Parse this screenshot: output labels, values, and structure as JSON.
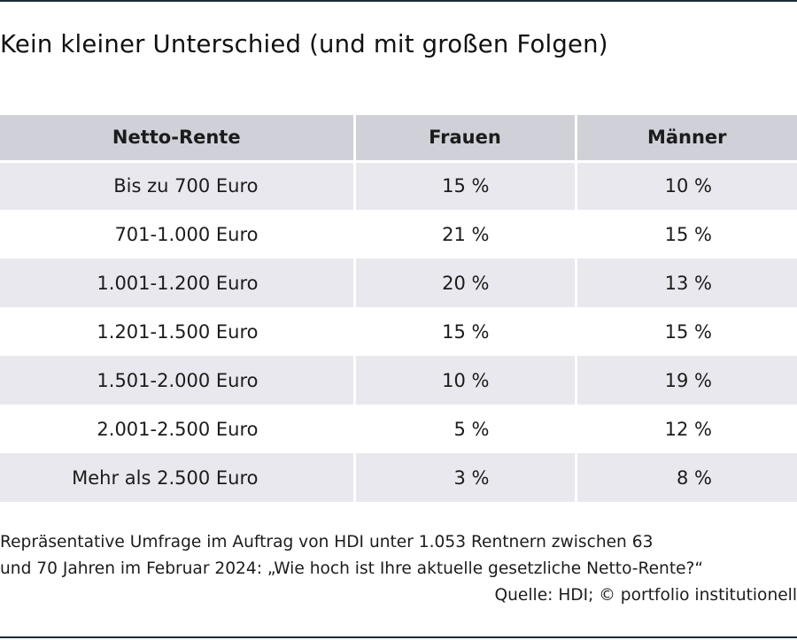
{
  "title": "Kein kleiner Unterschied (und mit großen Folgen)",
  "chart_data": {
    "type": "table",
    "columns": [
      "Netto-Rente",
      "Frauen",
      "Männer"
    ],
    "rows": [
      {
        "label": "Bis zu 700 Euro",
        "frauen": "15 %",
        "maenner": "10 %"
      },
      {
        "label": "701-1.000 Euro",
        "frauen": "21 %",
        "maenner": "15 %"
      },
      {
        "label": "1.001-1.200 Euro",
        "frauen": "20 %",
        "maenner": "13 %"
      },
      {
        "label": "1.201-1.500 Euro",
        "frauen": "15 %",
        "maenner": "15 %"
      },
      {
        "label": "1.501-2.000 Euro",
        "frauen": "10 %",
        "maenner": "19 %"
      },
      {
        "label": "2.001-2.500 Euro",
        "frauen": "5 %",
        "maenner": "12 %"
      },
      {
        "label": "Mehr als 2.500 Euro",
        "frauen": "3 %",
        "maenner": "8 %"
      }
    ],
    "values_frauen": [
      15,
      21,
      20,
      15,
      10,
      5,
      3
    ],
    "values_maenner": [
      10,
      15,
      13,
      15,
      19,
      12,
      8
    ],
    "unit": "%"
  },
  "footnote": {
    "line1": "Repräsentative Umfrage im Auftrag von HDI unter 1.053 Rentnern zwischen 63",
    "line2": "und 70 Jahren im Februar 2024: „Wie hoch ist Ihre aktuelle gesetzliche Netto-Rente?“",
    "source": "Quelle: HDI; © portfolio institutionell"
  },
  "colors": {
    "header_bg": "#cfd0d8",
    "row_shade": "#e8e8ee",
    "rule": "#1e2b3a"
  }
}
